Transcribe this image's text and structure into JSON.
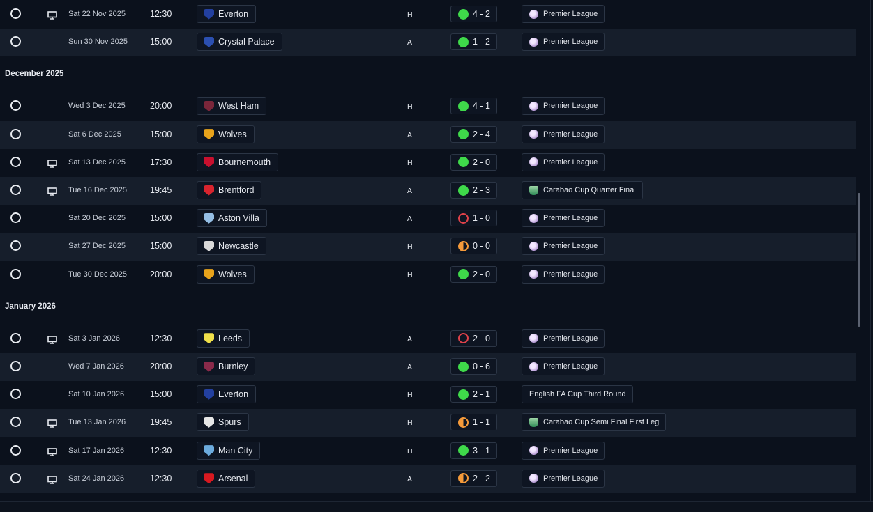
{
  "months": [
    {
      "key": "dec",
      "label": "December 2025"
    },
    {
      "key": "jan",
      "label": "January 2026"
    }
  ],
  "colors": {
    "win": "#3fd94a",
    "loss": "#e0424a",
    "draw": "#f59a3a",
    "row_alt": "#161e2b",
    "bg": "#0b111c"
  },
  "icons": {
    "select": "radio-circle-icon",
    "tv": "tv-icon",
    "premier_league": "premier-league-logo-icon",
    "carabao": "carabao-cup-logo-icon"
  },
  "fixtures": [
    {
      "tv": true,
      "date": "Sat 22 Nov 2025",
      "time": "12:30",
      "opponent": "Everton",
      "crest": "#2340a0",
      "venue": "H",
      "outcome": "W",
      "score": "4 - 2",
      "competition": "Premier League",
      "comp_icon": "pl"
    },
    {
      "tv": false,
      "date": "Sun 30 Nov 2025",
      "time": "15:00",
      "opponent": "Crystal Palace",
      "crest": "#2b4fb0",
      "venue": "A",
      "outcome": "W",
      "score": "1 - 2",
      "competition": "Premier League",
      "comp_icon": "pl"
    },
    {
      "month": "dec"
    },
    {
      "tv": false,
      "date": "Wed 3 Dec 2025",
      "time": "20:00",
      "opponent": "West Ham",
      "crest": "#7a263a",
      "venue": "H",
      "outcome": "W",
      "score": "4 - 1",
      "competition": "Premier League",
      "comp_icon": "pl"
    },
    {
      "tv": false,
      "date": "Sat 6 Dec 2025",
      "time": "15:00",
      "opponent": "Wolves",
      "crest": "#e8a31b",
      "venue": "A",
      "outcome": "W",
      "score": "2 - 4",
      "competition": "Premier League",
      "comp_icon": "pl"
    },
    {
      "tv": true,
      "date": "Sat 13 Dec 2025",
      "time": "17:30",
      "opponent": "Bournemouth",
      "crest": "#c8102e",
      "venue": "H",
      "outcome": "W",
      "score": "2 - 0",
      "competition": "Premier League",
      "comp_icon": "pl"
    },
    {
      "tv": true,
      "date": "Tue 16 Dec 2025",
      "time": "19:45",
      "opponent": "Brentford",
      "crest": "#d8242e",
      "venue": "A",
      "outcome": "W",
      "score": "2 - 3",
      "competition": "Carabao Cup Quarter Final",
      "comp_icon": "cc"
    },
    {
      "tv": false,
      "date": "Sat 20 Dec 2025",
      "time": "15:00",
      "opponent": "Aston Villa",
      "crest": "#95bfe5",
      "venue": "A",
      "outcome": "L",
      "score": "1 - 0",
      "competition": "Premier League",
      "comp_icon": "pl"
    },
    {
      "tv": false,
      "date": "Sat 27 Dec 2025",
      "time": "15:00",
      "opponent": "Newcastle",
      "crest": "#d9d9d9",
      "venue": "H",
      "outcome": "D",
      "score": "0 - 0",
      "competition": "Premier League",
      "comp_icon": "pl"
    },
    {
      "tv": false,
      "date": "Tue 30 Dec 2025",
      "time": "20:00",
      "opponent": "Wolves",
      "crest": "#e8a31b",
      "venue": "H",
      "outcome": "W",
      "score": "2 - 0",
      "competition": "Premier League",
      "comp_icon": "pl"
    },
    {
      "month": "jan"
    },
    {
      "tv": true,
      "date": "Sat 3 Jan 2026",
      "time": "12:30",
      "opponent": "Leeds",
      "crest": "#f0e04a",
      "venue": "A",
      "outcome": "L",
      "score": "2 - 0",
      "competition": "Premier League",
      "comp_icon": "pl"
    },
    {
      "tv": false,
      "date": "Wed 7 Jan 2026",
      "time": "20:00",
      "opponent": "Burnley",
      "crest": "#8a2a4a",
      "venue": "A",
      "outcome": "W",
      "score": "0 - 6",
      "competition": "Premier League",
      "comp_icon": "pl"
    },
    {
      "tv": false,
      "date": "Sat 10 Jan 2026",
      "time": "15:00",
      "opponent": "Everton",
      "crest": "#2340a0",
      "venue": "H",
      "outcome": "W",
      "score": "2 - 1",
      "competition": "English FA Cup Third Round",
      "comp_icon": "none"
    },
    {
      "tv": true,
      "date": "Tue 13 Jan 2026",
      "time": "19:45",
      "opponent": "Spurs",
      "crest": "#e6e6e6",
      "venue": "H",
      "outcome": "D",
      "score": "1 - 1",
      "competition": "Carabao Cup Semi Final First Leg",
      "comp_icon": "cc"
    },
    {
      "tv": true,
      "date": "Sat 17 Jan 2026",
      "time": "12:30",
      "opponent": "Man City",
      "crest": "#6cabdd",
      "venue": "H",
      "outcome": "W",
      "score": "3 - 1",
      "competition": "Premier League",
      "comp_icon": "pl"
    },
    {
      "tv": true,
      "date": "Sat 24 Jan 2026",
      "time": "12:30",
      "opponent": "Arsenal",
      "crest": "#d71920",
      "venue": "A",
      "outcome": "D",
      "score": "2 - 2",
      "competition": "Premier League",
      "comp_icon": "pl"
    }
  ]
}
